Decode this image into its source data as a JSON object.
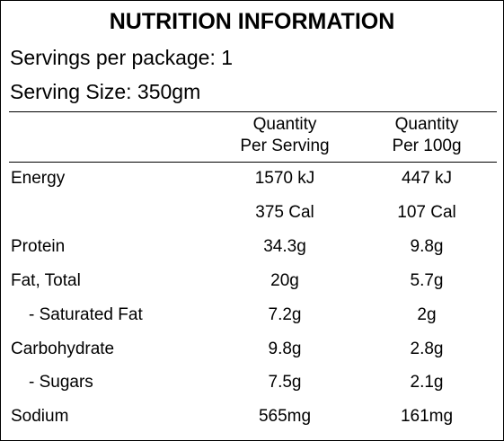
{
  "title": "NUTRITION INFORMATION",
  "servings_per_package": "Servings per package: 1",
  "serving_size": "Serving Size: 350gm",
  "columns": {
    "per_serving": [
      "Quantity",
      "Per Serving"
    ],
    "per_100g": [
      "Quantity",
      "Per 100g"
    ]
  },
  "rows": [
    {
      "label": "Energy",
      "per_serving": "1570 kJ",
      "per_100g": "447 kJ"
    },
    {
      "label": "",
      "per_serving": "375 Cal",
      "per_100g": "107 Cal"
    },
    {
      "label": "Protein",
      "per_serving": "34.3g",
      "per_100g": "9.8g"
    },
    {
      "label": "Fat, Total",
      "per_serving": "20g",
      "per_100g": "5.7g"
    },
    {
      "label": "- Saturated Fat",
      "per_serving": "7.2g",
      "per_100g": "2g"
    },
    {
      "label": "Carbohydrate",
      "per_serving": "9.8g",
      "per_100g": "2.8g"
    },
    {
      "label": "- Sugars",
      "per_serving": "7.5g",
      "per_100g": "2.1g"
    },
    {
      "label": "Sodium",
      "per_serving": "565mg",
      "per_100g": "161mg"
    }
  ]
}
